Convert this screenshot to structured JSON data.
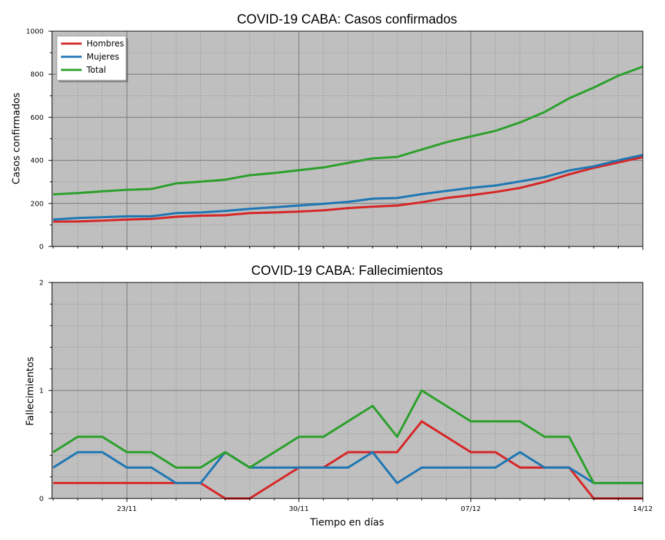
{
  "chart_data": [
    {
      "type": "line",
      "title": "COVID-19 CABA: Casos confirmados",
      "ylabel": "Casos confirmados",
      "xlabel": "",
      "ylim": [
        0,
        1000
      ],
      "yticks": [
        "0",
        "200",
        "400",
        "600",
        "800",
        "1000"
      ],
      "grid": true,
      "legend_position": "top-left",
      "x": [
        "20/11",
        "21/11",
        "22/11",
        "23/11",
        "24/11",
        "25/11",
        "26/11",
        "27/11",
        "28/11",
        "29/11",
        "30/11",
        "01/12",
        "02/12",
        "03/12",
        "04/12",
        "05/12",
        "06/12",
        "07/12",
        "08/12",
        "09/12",
        "10/12",
        "11/12",
        "12/12",
        "13/12",
        "14/12"
      ],
      "series": [
        {
          "name": "Hombres",
          "color": "#d62728",
          "values": [
            115,
            116,
            120,
            125,
            128,
            138,
            143,
            145,
            155,
            158,
            162,
            168,
            178,
            185,
            190,
            205,
            225,
            238,
            253,
            272,
            300,
            335,
            365,
            390,
            415
          ]
        },
        {
          "name": "Mujeres",
          "color": "#1f77b4",
          "values": [
            125,
            132,
            136,
            140,
            140,
            155,
            158,
            165,
            175,
            182,
            190,
            198,
            207,
            222,
            225,
            243,
            258,
            272,
            283,
            302,
            322,
            353,
            372,
            400,
            425
          ]
        },
        {
          "name": "Total",
          "color": "#2ca02c",
          "values": [
            242,
            248,
            256,
            263,
            267,
            293,
            301,
            310,
            331,
            341,
            354,
            367,
            388,
            409,
            416,
            450,
            484,
            511,
            537,
            576,
            624,
            688,
            738,
            793,
            835
          ]
        }
      ]
    },
    {
      "type": "line",
      "title": "COVID-19 CABA: Fallecimientos",
      "ylabel": "Fallecimientos",
      "xlabel": "Tiempo en días",
      "ylim": [
        0,
        2
      ],
      "yticks": [
        "0",
        "1",
        "2"
      ],
      "xticks": [
        "23/11",
        "30/11",
        "07/12",
        "14/12"
      ],
      "grid": true,
      "x": [
        "20/11",
        "21/11",
        "22/11",
        "23/11",
        "24/11",
        "25/11",
        "26/11",
        "27/11",
        "28/11",
        "29/11",
        "30/11",
        "01/12",
        "02/12",
        "03/12",
        "04/12",
        "05/12",
        "06/12",
        "07/12",
        "08/12",
        "09/12",
        "10/12",
        "11/12",
        "12/12",
        "13/12",
        "14/12"
      ],
      "series": [
        {
          "name": "Hombres",
          "color": "#d62728",
          "values": [
            0.143,
            0.143,
            0.143,
            0.143,
            0.143,
            0.143,
            0.143,
            0,
            0,
            0.143,
            0.286,
            0.286,
            0.429,
            0.429,
            0.429,
            0.714,
            0.571,
            0.429,
            0.429,
            0.286,
            0.286,
            0.286,
            0,
            0,
            0
          ]
        },
        {
          "name": "Mujeres",
          "color": "#1f77b4",
          "values": [
            0.286,
            0.429,
            0.429,
            0.286,
            0.286,
            0.143,
            0.143,
            0.429,
            0.286,
            0.286,
            0.286,
            0.286,
            0.286,
            0.429,
            0.143,
            0.286,
            0.286,
            0.286,
            0.286,
            0.429,
            0.286,
            0.286,
            0.143,
            0.143,
            0.143
          ]
        },
        {
          "name": "Total",
          "color": "#2ca02c",
          "values": [
            0.429,
            0.571,
            0.571,
            0.429,
            0.429,
            0.286,
            0.286,
            0.429,
            0.286,
            0.429,
            0.571,
            0.571,
            0.714,
            0.857,
            0.571,
            1.0,
            0.857,
            0.714,
            0.714,
            0.714,
            0.571,
            0.571,
            0.143,
            0.143,
            0.143
          ]
        }
      ]
    }
  ]
}
